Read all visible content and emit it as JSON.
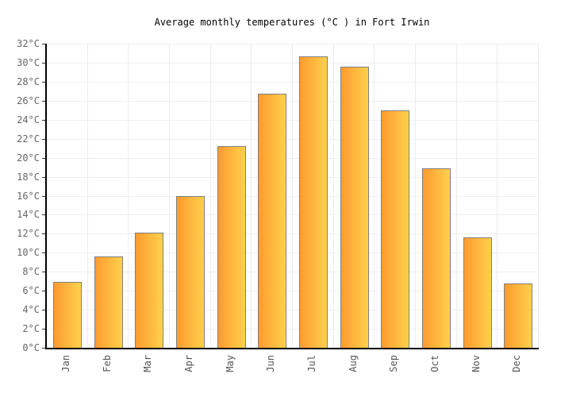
{
  "title": "Average monthly temperatures (°C ) in Fort Irwin",
  "chart_data": {
    "type": "bar",
    "title": "Average monthly temperatures (°C ) in Fort Irwin",
    "categories": [
      "Jan",
      "Feb",
      "Mar",
      "Apr",
      "May",
      "Jun",
      "Jul",
      "Aug",
      "Sep",
      "Oct",
      "Nov",
      "Dec"
    ],
    "values": [
      6.9,
      9.6,
      12.1,
      16.0,
      21.2,
      26.7,
      30.7,
      29.6,
      25.0,
      18.9,
      11.6,
      6.8
    ],
    "xlabel": "",
    "ylabel": "",
    "ylim": [
      0,
      32
    ],
    "ytick_step": 2,
    "ytick_suffix": "°C",
    "grid": true,
    "legend": "none",
    "bar_color_left": "#ff9b30",
    "bar_color_right": "#ffd04c",
    "bar_border_color": "#7e7e7e",
    "grid_color": "#efefef",
    "axis_color": "#000000",
    "tick_label_color": "#666666",
    "background_color": "#ffffff"
  }
}
